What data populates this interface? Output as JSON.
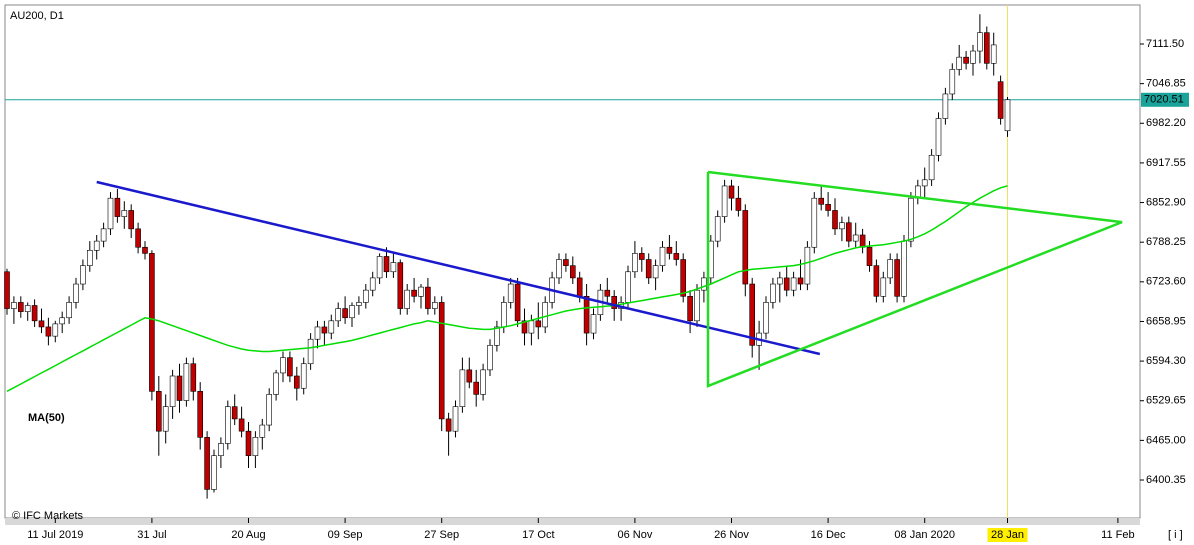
{
  "chart_data": {
    "type": "candlestick",
    "title": "AU200, D1",
    "watermark": "© IFC Markets",
    "info_button": "[ i ]",
    "categories": [
      null,
      null,
      null,
      null,
      null,
      null,
      null,
      "11 Jul 2019",
      null,
      null,
      null,
      null,
      null,
      null,
      null,
      null,
      null,
      null,
      null,
      null,
      null,
      "31 Jul",
      null,
      null,
      null,
      null,
      null,
      null,
      null,
      null,
      null,
      null,
      null,
      null,
      null,
      "20 Aug",
      null,
      null,
      null,
      null,
      null,
      null,
      null,
      null,
      null,
      null,
      null,
      null,
      null,
      "09 Sep",
      null,
      null,
      null,
      null,
      null,
      null,
      null,
      null,
      null,
      null,
      null,
      null,
      null,
      "27 Sep",
      null,
      null,
      null,
      null,
      null,
      null,
      null,
      null,
      null,
      null,
      null,
      null,
      null,
      "17 Oct",
      null,
      null,
      null,
      null,
      null,
      null,
      null,
      null,
      null,
      null,
      null,
      null,
      null,
      "06 Nov",
      null,
      null,
      null,
      null,
      null,
      null,
      null,
      null,
      null,
      null,
      null,
      null,
      null,
      "26 Nov",
      null,
      null,
      null,
      null,
      null,
      null,
      null,
      null,
      null,
      null,
      null,
      null,
      null,
      "16 Dec",
      null,
      null,
      null,
      null,
      null,
      null,
      null,
      null,
      null,
      null,
      null,
      null,
      null,
      "08 Jan 2020",
      null,
      null,
      null,
      null,
      null,
      null,
      null,
      null,
      null,
      null,
      null,
      "28 Jan",
      null,
      null,
      null,
      null,
      null,
      null,
      null,
      null,
      null,
      null,
      null,
      null,
      null,
      null,
      null,
      "11 Feb",
      null,
      null,
      null
    ],
    "open": [
      6740,
      6680,
      6690,
      6675,
      6685,
      6660,
      6650,
      6635,
      6655,
      6665,
      6690,
      6720,
      6750,
      6775,
      6790,
      6810,
      6860,
      6830,
      6840,
      6810,
      6780,
      6770,
      6545,
      6480,
      6520,
      6570,
      6530,
      6590,
      6545,
      6470,
      6385,
      6440,
      6460,
      6520,
      6500,
      6480,
      6440,
      6470,
      6490,
      6540,
      6575,
      6600,
      6570,
      6550,
      6590,
      6630,
      6650,
      6640,
      6660,
      6680,
      6665,
      6685,
      6690,
      6710,
      6730,
      6765,
      6740,
      6755,
      6680,
      6710,
      6700,
      6715,
      6680,
      6690,
      6500,
      6480,
      6520,
      6580,
      6560,
      6540,
      6580,
      6620,
      6650,
      6690,
      6720,
      6660,
      6640,
      6660,
      6650,
      6690,
      6730,
      6760,
      6750,
      6730,
      6700,
      6640,
      6670,
      6710,
      6700,
      6680,
      6690,
      6740,
      6770,
      6760,
      6730,
      6750,
      6780,
      6770,
      6760,
      6700,
      6660,
      6710,
      6730,
      6790,
      6830,
      6880,
      6860,
      6840,
      6720,
      6620,
      6640,
      6690,
      6720,
      6730,
      6710,
      6730,
      6720,
      6780,
      6860,
      6850,
      6840,
      6810,
      6820,
      6790,
      6800,
      6780,
      6750,
      6700,
      6730,
      6760,
      6700,
      6790,
      6860,
      6880,
      6890,
      6930,
      6990,
      7030,
      7070,
      7090,
      7080,
      7100,
      7130,
      7080,
      7050,
      6970,
      null,
      null,
      null,
      null,
      null,
      null,
      null,
      null,
      null,
      null,
      null,
      null,
      null,
      null,
      null,
      null,
      null,
      null,
      null
    ],
    "high": [
      6745,
      6700,
      6700,
      6690,
      6695,
      6680,
      6665,
      6660,
      6675,
      6700,
      6730,
      6760,
      6790,
      6800,
      6820,
      6870,
      6875,
      6855,
      6850,
      6820,
      6790,
      6775,
      6570,
      6540,
      6580,
      6590,
      6600,
      6600,
      6560,
      6480,
      6450,
      6470,
      6530,
      6540,
      6520,
      6495,
      6480,
      6500,
      6550,
      6580,
      6610,
      6610,
      6585,
      6600,
      6640,
      6660,
      6660,
      6670,
      6690,
      6700,
      6690,
      6700,
      6720,
      6740,
      6770,
      6780,
      6770,
      6760,
      6720,
      6730,
      6720,
      6730,
      6700,
      6700,
      6510,
      6530,
      6600,
      6600,
      6580,
      6590,
      6630,
      6660,
      6700,
      6730,
      6730,
      6680,
      6670,
      6690,
      6700,
      6740,
      6770,
      6770,
      6765,
      6740,
      6720,
      6680,
      6720,
      6730,
      6710,
      6700,
      6750,
      6790,
      6780,
      6770,
      6760,
      6790,
      6800,
      6790,
      6770,
      6710,
      6720,
      6740,
      6800,
      6840,
      6890,
      6890,
      6880,
      6850,
      6730,
      6660,
      6700,
      6730,
      6740,
      6750,
      6740,
      6760,
      6790,
      6870,
      6880,
      6870,
      6860,
      6830,
      6830,
      6820,
      6810,
      6790,
      6760,
      6740,
      6770,
      6770,
      6800,
      6870,
      6890,
      6910,
      6940,
      7000,
      7040,
      7080,
      7110,
      7100,
      7110,
      7160,
      7140,
      7130,
      7060,
      7025,
      null,
      null,
      null,
      null,
      null,
      null,
      null,
      null,
      null,
      null,
      null,
      null,
      null,
      null,
      null,
      null,
      null,
      null,
      null
    ],
    "low": [
      6670,
      6655,
      6665,
      6660,
      6650,
      6640,
      6620,
      6625,
      6640,
      6655,
      6680,
      6710,
      6740,
      6760,
      6780,
      6800,
      6820,
      6810,
      6795,
      6770,
      6760,
      6530,
      6440,
      6460,
      6500,
      6510,
      6520,
      6530,
      6450,
      6370,
      6380,
      6420,
      6450,
      6490,
      6470,
      6420,
      6420,
      6450,
      6480,
      6530,
      6560,
      6560,
      6530,
      6540,
      6580,
      6615,
      6620,
      6630,
      6650,
      6655,
      6650,
      6670,
      6680,
      6700,
      6720,
      6730,
      6730,
      6670,
      6670,
      6690,
      6680,
      6670,
      6670,
      6480,
      6440,
      6470,
      6510,
      6550,
      6520,
      6530,
      6570,
      6610,
      6640,
      6680,
      6650,
      6620,
      6620,
      6630,
      6640,
      6680,
      6720,
      6740,
      6720,
      6690,
      6620,
      6630,
      6660,
      6690,
      6660,
      6660,
      6680,
      6730,
      6740,
      6720,
      6710,
      6740,
      6760,
      6750,
      6690,
      6640,
      6650,
      6690,
      6720,
      6780,
      6820,
      6840,
      6830,
      6700,
      6600,
      6580,
      6630,
      6680,
      6690,
      6700,
      6700,
      6710,
      6710,
      6770,
      6840,
      6830,
      6800,
      6790,
      6780,
      6780,
      6770,
      6740,
      6690,
      6690,
      6720,
      6690,
      6690,
      6780,
      6850,
      6860,
      6880,
      6920,
      6980,
      7020,
      7060,
      7070,
      7060,
      7080,
      7070,
      7060,
      6980,
      6960,
      null,
      null,
      null,
      null,
      null,
      null,
      null,
      null,
      null,
      null,
      null,
      null,
      null,
      null,
      null,
      null,
      null,
      null,
      null
    ],
    "close": [
      6680,
      6690,
      6675,
      6685,
      6660,
      6650,
      6635,
      6655,
      6665,
      6690,
      6720,
      6750,
      6775,
      6790,
      6810,
      6860,
      6830,
      6840,
      6810,
      6780,
      6770,
      6545,
      6480,
      6520,
      6570,
      6530,
      6590,
      6545,
      6470,
      6385,
      6440,
      6460,
      6520,
      6500,
      6480,
      6440,
      6470,
      6490,
      6540,
      6575,
      6600,
      6570,
      6550,
      6590,
      6630,
      6650,
      6640,
      6660,
      6680,
      6665,
      6685,
      6690,
      6710,
      6730,
      6765,
      6740,
      6755,
      6680,
      6710,
      6700,
      6715,
      6680,
      6690,
      6500,
      6480,
      6520,
      6580,
      6560,
      6540,
      6580,
      6620,
      6650,
      6690,
      6720,
      6660,
      6640,
      6660,
      6650,
      6690,
      6730,
      6760,
      6750,
      6730,
      6700,
      6640,
      6670,
      6710,
      6700,
      6680,
      6690,
      6740,
      6770,
      6760,
      6730,
      6750,
      6780,
      6770,
      6760,
      6700,
      6660,
      6710,
      6730,
      6790,
      6830,
      6880,
      6860,
      6840,
      6720,
      6620,
      6640,
      6690,
      6720,
      6730,
      6710,
      6730,
      6720,
      6780,
      6860,
      6850,
      6840,
      6810,
      6820,
      6790,
      6800,
      6780,
      6750,
      6700,
      6730,
      6760,
      6700,
      6790,
      6860,
      6880,
      6890,
      6930,
      6990,
      7030,
      7070,
      7090,
      7080,
      7100,
      7130,
      7080,
      7110,
      6990,
      7020.51,
      null,
      null,
      null,
      null,
      null,
      null,
      null,
      null,
      null,
      null,
      null,
      null,
      null,
      null,
      null,
      null,
      null,
      null,
      null
    ],
    "color_up": "#ffffff",
    "color_down": "#c00000",
    "indicator": {
      "name": "MA(50)",
      "color": "#00dd00",
      "values": [
        6545,
        6551,
        6557,
        6563,
        6569,
        6575,
        6581,
        6587,
        6593,
        6599,
        6605,
        6611,
        6617,
        6623,
        6629,
        6635,
        6641,
        6647,
        6653,
        6659,
        6665,
        6663,
        6660,
        6656,
        6652,
        6648,
        6644,
        6640,
        6636,
        6632,
        6628,
        6624,
        6620,
        6617,
        6614,
        6612,
        6611,
        6610,
        6610,
        6611,
        6612,
        6613,
        6614,
        6615,
        6616,
        6618,
        6620,
        6622,
        6624,
        6626,
        6628,
        6631,
        6634,
        6637,
        6640,
        6643,
        6646,
        6649,
        6652,
        6655,
        6657,
        6660,
        6658,
        6656,
        6654,
        6652,
        6650,
        6648,
        6647,
        6646,
        6646,
        6648,
        6650,
        6652,
        6655,
        6658,
        6661,
        6664,
        6667,
        6670,
        6673,
        6676,
        6678,
        6680,
        6681,
        6682,
        6683,
        6684,
        6685,
        6687,
        6689,
        6691,
        6693,
        6695,
        6697,
        6699,
        6701,
        6703,
        6705,
        6708,
        6712,
        6716,
        6720,
        6725,
        6730,
        6735,
        6740,
        6742,
        6744,
        6745,
        6746,
        6747,
        6748,
        6749,
        6750,
        6752,
        6755,
        6758,
        6762,
        6766,
        6770,
        6773,
        6776,
        6779,
        6781,
        6782,
        6783,
        6784,
        6786,
        6788,
        6790,
        6793,
        6797,
        6802,
        6808,
        6815,
        6822,
        6830,
        6838,
        6846,
        6853,
        6860,
        6866,
        6872,
        6877,
        6880,
        null,
        null,
        null,
        null,
        null,
        null,
        null,
        null,
        null,
        null,
        null,
        null,
        null,
        null,
        null,
        null,
        null,
        null,
        null
      ]
    },
    "trendlines": [
      {
        "color": "#1a1acc",
        "x": [
          13,
          117.8
        ],
        "y": [
          6886.4,
          6605.9
        ]
      },
      {
        "color": "#22dd22",
        "x": [
          101.6,
          161.6,
          101.6,
          101.6
        ],
        "y": [
          6902.7,
          6821,
          6553.7,
          6902.7
        ]
      }
    ],
    "current_price": {
      "value": 7020.51,
      "color": "#1aa39a"
    },
    "ylim": [
      6338.4,
      7175.1
    ],
    "yticks": [
      {
        "value": 7111.5,
        "label": "7111.50"
      },
      {
        "value": 7046.85,
        "label": "7046.85"
      },
      {
        "value": 6982.2,
        "label": "6982.20"
      },
      {
        "value": 6917.55,
        "label": "6917.55"
      },
      {
        "value": 6852.9,
        "label": "6852.90"
      },
      {
        "value": 6788.25,
        "label": "6788.25"
      },
      {
        "value": 6723.6,
        "label": "6723.60"
      },
      {
        "value": 6658.95,
        "label": "6658.95"
      },
      {
        "value": 6594.3,
        "label": "6594.30"
      },
      {
        "value": 6529.65,
        "label": "6529.65"
      },
      {
        "value": 6465,
        "label": "6465.00"
      },
      {
        "value": 6400.35,
        "label": "6400.35"
      }
    ]
  }
}
